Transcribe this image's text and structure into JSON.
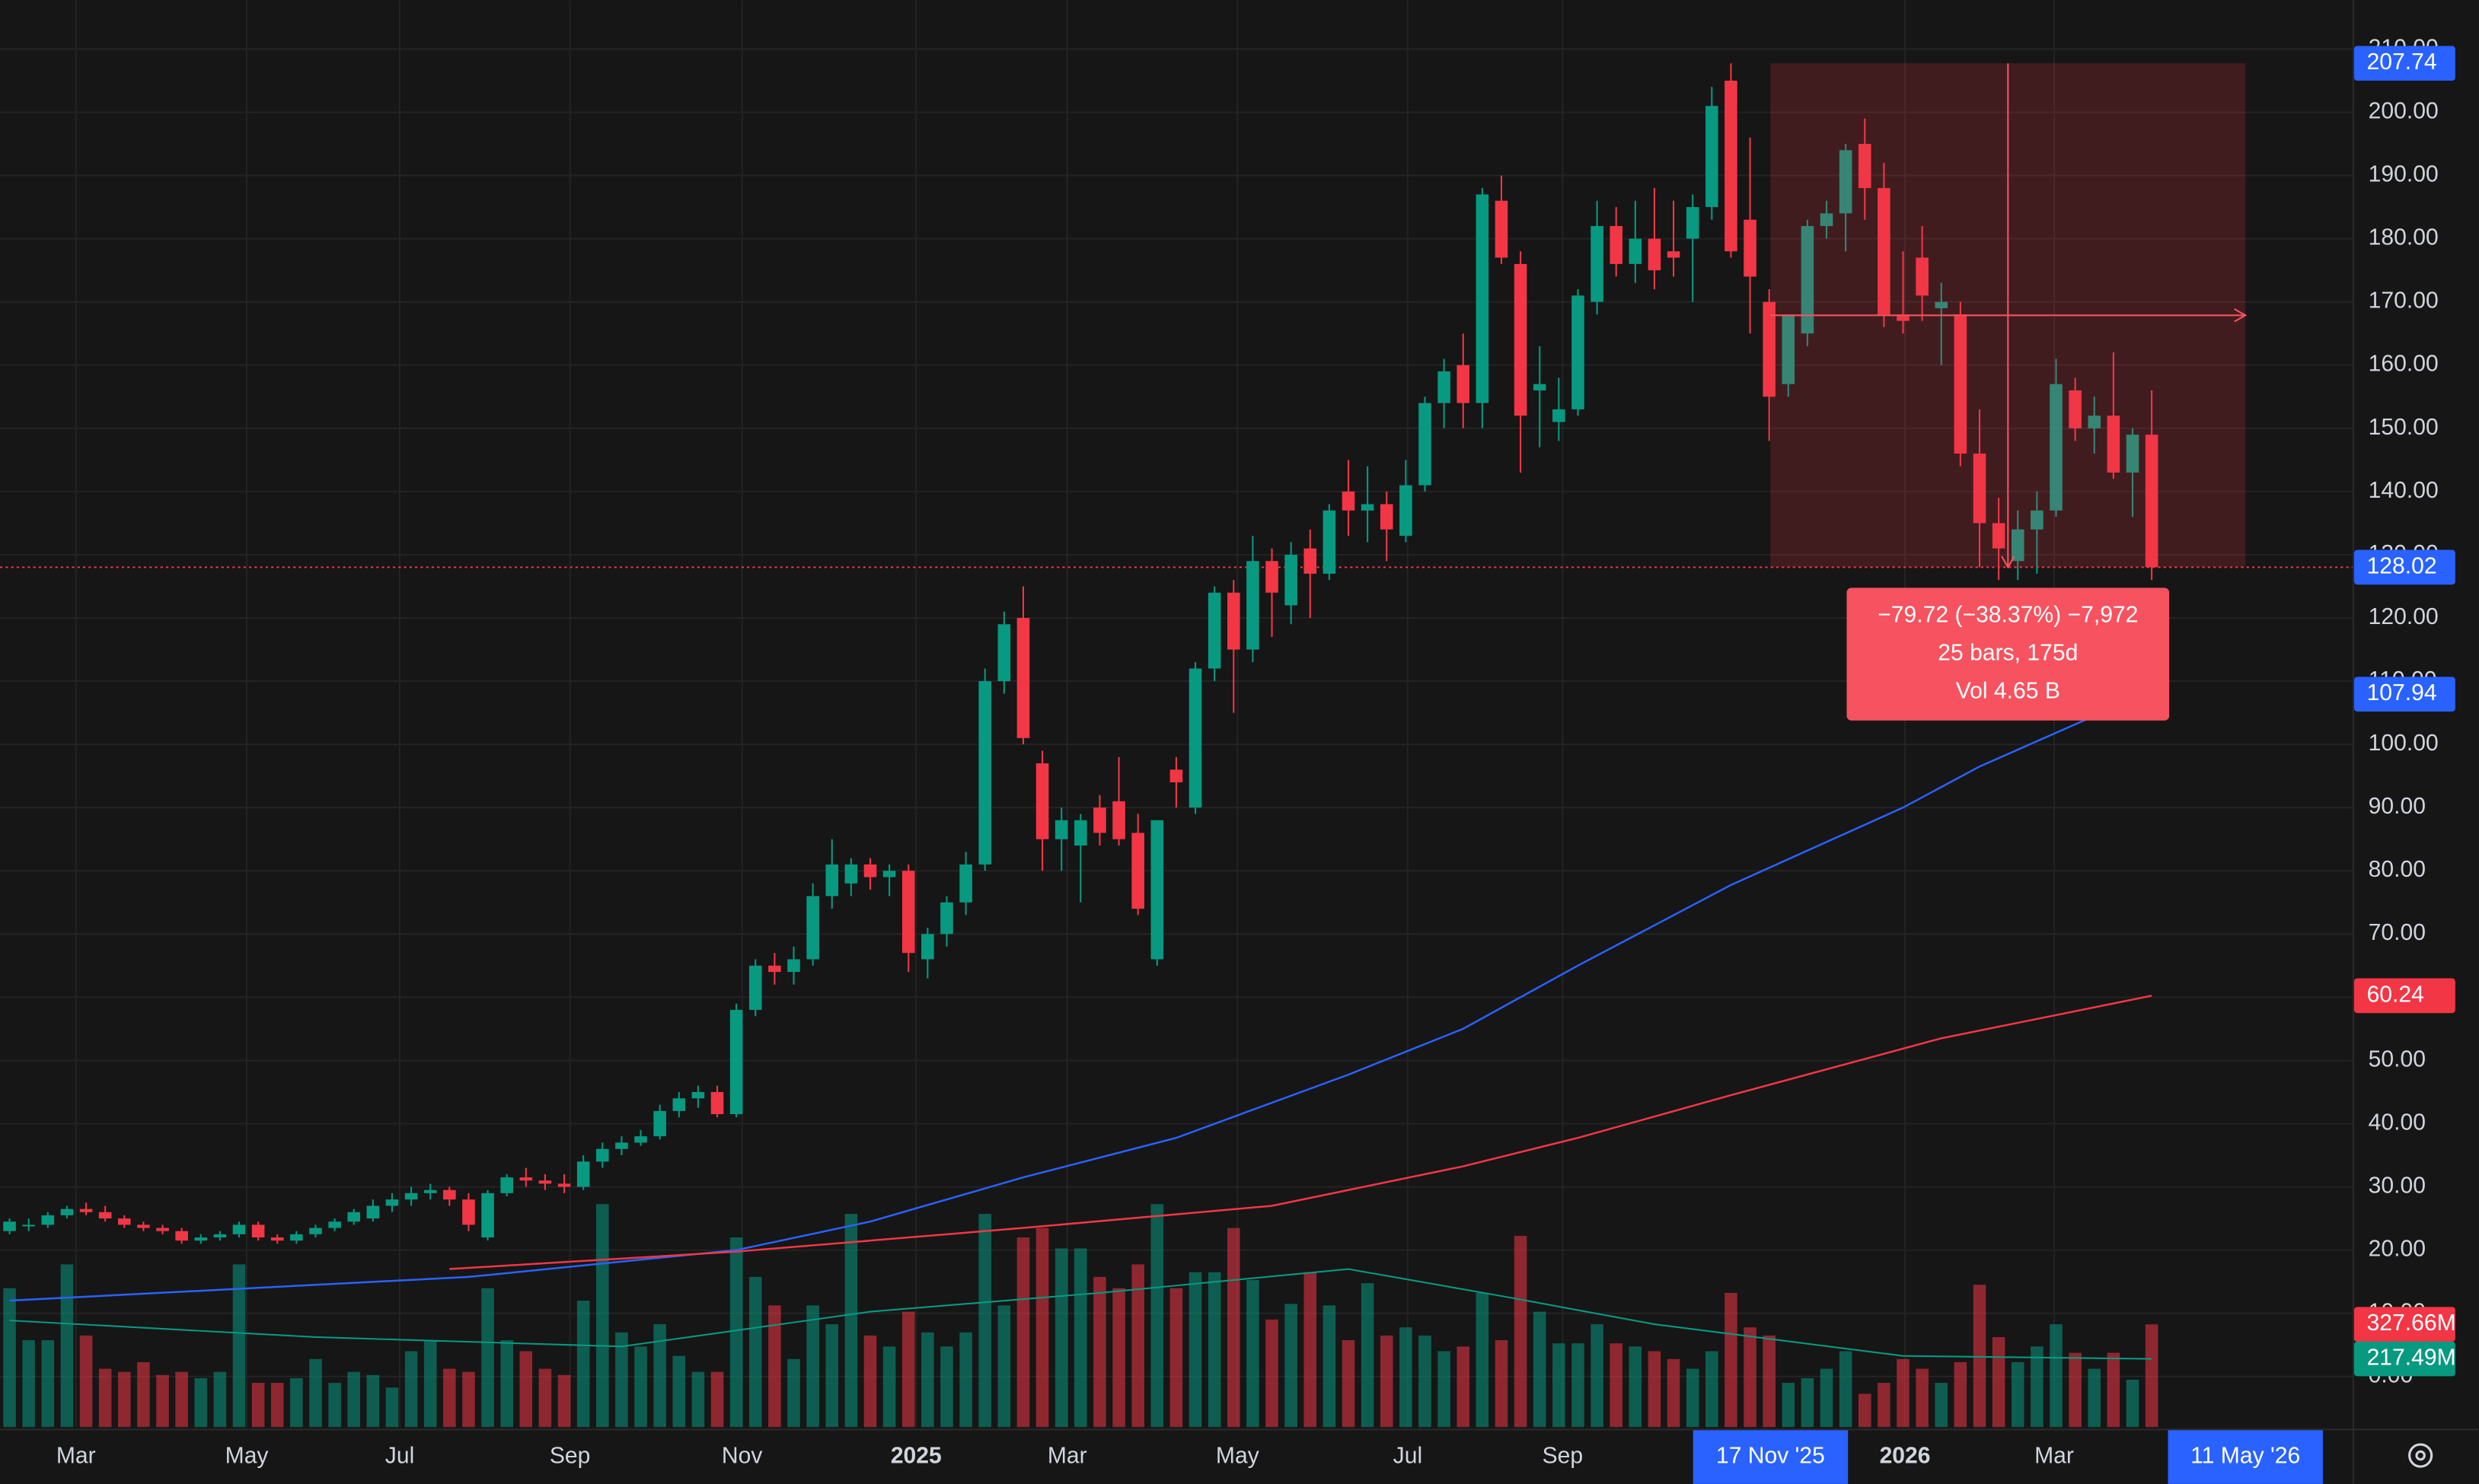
{
  "chart_data": {
    "type": "candlestick",
    "xlim": [
      -0.5,
      122.5
    ],
    "ylim": [
      -8,
      217.75
    ],
    "volume_lim": [
      0,
      4552
    ],
    "up_color": "#089981",
    "down_color": "#f23645",
    "grid": true,
    "xticks": [
      {
        "value": 3.47,
        "label": "Mar"
      },
      {
        "value": 12.4,
        "label": "May"
      },
      {
        "value": 20.4,
        "label": "Jul"
      },
      {
        "value": 29.3,
        "label": "Sep"
      },
      {
        "value": 38.3,
        "label": "Nov"
      },
      {
        "value": 47.4,
        "label": "2025",
        "emphasis": true
      },
      {
        "value": 55.3,
        "label": "Mar"
      },
      {
        "value": 64.2,
        "label": "May"
      },
      {
        "value": 73.1,
        "label": "Jul"
      },
      {
        "value": 81.2,
        "label": "Sep"
      },
      {
        "value": 99.1,
        "label": "2026",
        "emphasis": true
      },
      {
        "value": 106.9,
        "label": "Mar"
      }
    ],
    "range_labels": [
      {
        "value": 92.07,
        "label": "17 Nov '25"
      },
      {
        "value": 116.9,
        "label": "11 May '26"
      }
    ],
    "yticks": [
      {
        "value": 0,
        "label": "0.00"
      },
      {
        "value": 10,
        "label": "10.00"
      },
      {
        "value": 20,
        "label": "20.00"
      },
      {
        "value": 30,
        "label": "30.00"
      },
      {
        "value": 40,
        "label": "40.00"
      },
      {
        "value": 50,
        "label": "50.00"
      },
      {
        "value": 60,
        "label": "60.00"
      },
      {
        "value": 70,
        "label": "70.00"
      },
      {
        "value": 80,
        "label": "80.00"
      },
      {
        "value": 90,
        "label": "90.00"
      },
      {
        "value": 100,
        "label": "100.00"
      },
      {
        "value": 110,
        "label": "110.00"
      },
      {
        "value": 120,
        "label": "120.00"
      },
      {
        "value": 130,
        "label": "130.00"
      },
      {
        "value": 140,
        "label": "140.00"
      },
      {
        "value": 150,
        "label": "150.00"
      },
      {
        "value": 160,
        "label": "160.00"
      },
      {
        "value": 170,
        "label": "170.00"
      },
      {
        "value": 180,
        "label": "180.00"
      },
      {
        "value": 190,
        "label": "190.00"
      },
      {
        "value": 200,
        "label": "200.00"
      },
      {
        "value": 210,
        "label": "210.00"
      }
    ],
    "price_labels": [
      {
        "value": 207.74,
        "label": "207.74",
        "color": "#2962ff"
      },
      {
        "value": 128.02,
        "label": "128.02",
        "color": "#2962ff"
      },
      {
        "value": 107.94,
        "label": "107.94",
        "color": "#2962ff"
      },
      {
        "value": 60.24,
        "label": "60.24",
        "color": "#f23645"
      }
    ],
    "volume_labels": [
      {
        "value": 327.66,
        "label": "327.66M",
        "color": "#f23645"
      },
      {
        "value": 217.49,
        "label": "217.49M",
        "color": "#089981"
      }
    ],
    "tooltip": [
      "−79.72 (−38.37%) −7,972",
      "25 bars, 175d",
      "Vol 4.65 B"
    ],
    "ohlc": [
      [
        23,
        25,
        22.5,
        24.5
      ],
      [
        24,
        25,
        23,
        24
      ],
      [
        24,
        26,
        23.5,
        25.5
      ],
      [
        25.5,
        27,
        25,
        26.5
      ],
      [
        26.5,
        27.5,
        25.5,
        26
      ],
      [
        26,
        27,
        24.5,
        25
      ],
      [
        25,
        25.5,
        23.5,
        24
      ],
      [
        24,
        24.5,
        23,
        23.5
      ],
      [
        23.5,
        24,
        22.5,
        23
      ],
      [
        23,
        23.5,
        21,
        21.5
      ],
      [
        21.5,
        22.5,
        21,
        22
      ],
      [
        22,
        23,
        21.5,
        22.5
      ],
      [
        22.5,
        24.5,
        22,
        24
      ],
      [
        24,
        24.5,
        21.5,
        22
      ],
      [
        22,
        22.5,
        21,
        21.5
      ],
      [
        21.5,
        23,
        21,
        22.5
      ],
      [
        22.5,
        24,
        22,
        23.5
      ],
      [
        23.5,
        25,
        23,
        24.5
      ],
      [
        24.5,
        26.5,
        24,
        26
      ],
      [
        25,
        28,
        24.5,
        27
      ],
      [
        27,
        29,
        26,
        28
      ],
      [
        28,
        30,
        27,
        29
      ],
      [
        29,
        30.5,
        28,
        29.5
      ],
      [
        29.5,
        30,
        27,
        28
      ],
      [
        28,
        29,
        23,
        24
      ],
      [
        22,
        29.5,
        21.5,
        29
      ],
      [
        29,
        32,
        28.5,
        31.5
      ],
      [
        31.5,
        33,
        30,
        31
      ],
      [
        31,
        32,
        29.5,
        30.5
      ],
      [
        30.5,
        32,
        29,
        30
      ],
      [
        30,
        35,
        29.5,
        34
      ],
      [
        34,
        37,
        33,
        36
      ],
      [
        36,
        38,
        35,
        37
      ],
      [
        37,
        39,
        36.5,
        38
      ],
      [
        38,
        43,
        37.5,
        42
      ],
      [
        42,
        45,
        41,
        44
      ],
      [
        44,
        46,
        42.5,
        45
      ],
      [
        45,
        46,
        41,
        41.5
      ],
      [
        41.5,
        59,
        41,
        58
      ],
      [
        58,
        66,
        57,
        65
      ],
      [
        65,
        67,
        62,
        64
      ],
      [
        64,
        68,
        62,
        66
      ],
      [
        66,
        78,
        65,
        76
      ],
      [
        76,
        85,
        74,
        81
      ],
      [
        78,
        82,
        76,
        81
      ],
      [
        81,
        82,
        77,
        79
      ],
      [
        79,
        81,
        76,
        80
      ],
      [
        80,
        81,
        64,
        67
      ],
      [
        66,
        71,
        63,
        70
      ],
      [
        70,
        76,
        68,
        75
      ],
      [
        75,
        83,
        73,
        81
      ],
      [
        81,
        112,
        80,
        110
      ],
      [
        110,
        121,
        108,
        119
      ],
      [
        120,
        125,
        100,
        101
      ],
      [
        97,
        99,
        80,
        85
      ],
      [
        85,
        90,
        80,
        88
      ],
      [
        84,
        89,
        75,
        88
      ],
      [
        90,
        92,
        84,
        86
      ],
      [
        91,
        98,
        84,
        85
      ],
      [
        86,
        89,
        73,
        74
      ],
      [
        66,
        88,
        65,
        88
      ],
      [
        96,
        98,
        90,
        94
      ],
      [
        90,
        113,
        89,
        112
      ],
      [
        112,
        125,
        110,
        124
      ],
      [
        124,
        126,
        105,
        115
      ],
      [
        115,
        133,
        113,
        129
      ],
      [
        129,
        131,
        117,
        124
      ],
      [
        122,
        132,
        119,
        130
      ],
      [
        131,
        134,
        120,
        127
      ],
      [
        127,
        138,
        126,
        137
      ],
      [
        140,
        145,
        133,
        137
      ],
      [
        137,
        144,
        132,
        138
      ],
      [
        138,
        140,
        129,
        134
      ],
      [
        133,
        145,
        132,
        141
      ],
      [
        141,
        155,
        140,
        154
      ],
      [
        154,
        161,
        150,
        159
      ],
      [
        160,
        165,
        150,
        154
      ],
      [
        154,
        188,
        150,
        187
      ],
      [
        186,
        190,
        176,
        177
      ],
      [
        176,
        178,
        143,
        152
      ],
      [
        156,
        163,
        147,
        157
      ],
      [
        151,
        158,
        148,
        153
      ],
      [
        153,
        172,
        152,
        171
      ],
      [
        170,
        186,
        168,
        182
      ],
      [
        182,
        185,
        174,
        176
      ],
      [
        176,
        186,
        173,
        180
      ],
      [
        180,
        188,
        172,
        175
      ],
      [
        178,
        186,
        174,
        177
      ],
      [
        180,
        187,
        170,
        185
      ],
      [
        185,
        204,
        183,
        201
      ],
      [
        205,
        207.74,
        177,
        178
      ],
      [
        183,
        196,
        165,
        174
      ],
      [
        170,
        172,
        148,
        155
      ],
      [
        157,
        168,
        155,
        168
      ],
      [
        165,
        183,
        163,
        182
      ],
      [
        182,
        186,
        180,
        184
      ],
      [
        184,
        195,
        178,
        194
      ],
      [
        195,
        199,
        183,
        188
      ],
      [
        188,
        192,
        166,
        168
      ],
      [
        168,
        178,
        165,
        167
      ],
      [
        177,
        182,
        167,
        171
      ],
      [
        169,
        173,
        160,
        170
      ],
      [
        168,
        170,
        144,
        146
      ],
      [
        146,
        153,
        128,
        135
      ],
      [
        135,
        139,
        126,
        131
      ],
      [
        129,
        137,
        126,
        134
      ],
      [
        134,
        140,
        127,
        137
      ],
      [
        137,
        161,
        136,
        157
      ],
      [
        156,
        158,
        148,
        150
      ],
      [
        150,
        155,
        146,
        152
      ],
      [
        152,
        162,
        142,
        143
      ],
      [
        143,
        150,
        136,
        149
      ],
      [
        149,
        156,
        126,
        128.02
      ]
    ],
    "volume": {
      "values": [
        443,
        277,
        277,
        519,
        292,
        186,
        176,
        207,
        166,
        176,
        156,
        176,
        519,
        141,
        141,
        156,
        217,
        141,
        176,
        166,
        126,
        242,
        277,
        186,
        176,
        443,
        277,
        242,
        186,
        166,
        403,
        711,
        302,
        257,
        328,
        227,
        176,
        176,
        605,
        479,
        388,
        217,
        388,
        328,
        680,
        292,
        257,
        368,
        302,
        257,
        302,
        680,
        388,
        605,
        635,
        570,
        570,
        479,
        443,
        519,
        711,
        443,
        494,
        494,
        635,
        469,
        343,
        393,
        494,
        388,
        277,
        459,
        292,
        318,
        292,
        242,
        257,
        428,
        277,
        610,
        368,
        267,
        267,
        328,
        267,
        257,
        242,
        217,
        186,
        242,
        428,
        318,
        292,
        141,
        156,
        186,
        242,
        106,
        141,
        217,
        186,
        141,
        207,
        454,
        287,
        207,
        257,
        328,
        237,
        186,
        237,
        151,
        327.66
      ]
    },
    "ma": [
      {
        "color": "#2962ff",
        "x": [
          0,
          24,
          38,
          45,
          53,
          61,
          70,
          76,
          82,
          90,
          99,
          103,
          109,
          112
        ],
        "values": [
          12,
          15.75,
          20,
          24.5,
          31.5,
          37.75,
          47.75,
          55,
          65,
          77.75,
          90,
          96.5,
          104.5,
          107.94
        ]
      },
      {
        "color": "#f23645",
        "x": [
          23,
          38,
          53,
          66,
          76,
          82,
          90,
          101,
          112
        ],
        "values": [
          17,
          19.75,
          23.5,
          27,
          33.25,
          37.75,
          44.5,
          53.5,
          60.24
        ]
      }
    ],
    "volume_ma": {
      "color": "#089981",
      "x": [
        0,
        16,
        32,
        45,
        57,
        70,
        78,
        86,
        99,
        112
      ],
      "values": [
        340,
        287,
        257,
        368,
        428,
        504,
        418,
        328,
        227,
        217.49
      ]
    }
  }
}
